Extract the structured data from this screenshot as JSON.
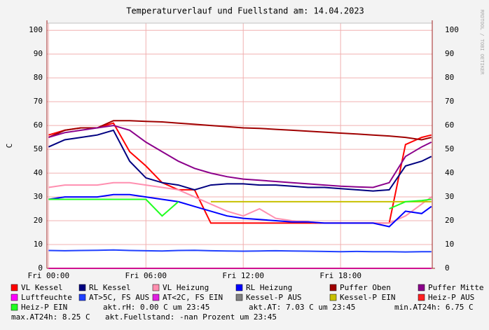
{
  "chart_data": {
    "type": "line",
    "title": "Temperaturverlauf und Fuellstand am: 14.04.2023",
    "y_label": "C",
    "side_label": "RRDTOOL / TOBI OETIKER",
    "x": [
      0,
      1,
      2,
      3,
      4,
      5,
      6,
      7,
      8,
      9,
      10,
      11,
      12,
      13,
      14,
      15,
      16,
      17,
      18,
      19,
      20,
      21,
      22,
      23,
      23.6
    ],
    "xlim": [
      -0.1,
      23.65
    ],
    "xticks": [
      {
        "value": 0,
        "label": "Fri 00:00"
      },
      {
        "value": 6,
        "label": "Fri 06:00"
      },
      {
        "value": 12,
        "label": "Fri 12:00"
      },
      {
        "value": 18,
        "label": "Fri 18:00"
      }
    ],
    "ylim": [
      0,
      103
    ],
    "yticks": [
      0,
      10,
      20,
      30,
      40,
      50,
      60,
      70,
      80,
      90,
      100
    ],
    "grid": true,
    "series": [
      {
        "name": "VL Kessel",
        "color": "#ff0000",
        "values": [
          56,
          58,
          59,
          59,
          61,
          49,
          43,
          36,
          33,
          33,
          19,
          19,
          19,
          19,
          19,
          19,
          19,
          19,
          19,
          19,
          19,
          19,
          52,
          55,
          56
        ]
      },
      {
        "name": "RL Kessel",
        "color": "#000080",
        "values": [
          51,
          54,
          55,
          56,
          58,
          45,
          38,
          36,
          35,
          33,
          35,
          35.5,
          35.5,
          35,
          35,
          34.5,
          34,
          34,
          33.5,
          33,
          32.5,
          33,
          43,
          45,
          47
        ]
      },
      {
        "name": "VL Heizung",
        "color": "#ff8fb0",
        "values": [
          34,
          35,
          35,
          35,
          36,
          36,
          35,
          34,
          33,
          30,
          27,
          24,
          22,
          25,
          21,
          20,
          19.5,
          19,
          19,
          19,
          19,
          19,
          22,
          27,
          30
        ]
      },
      {
        "name": "RL Heizung",
        "color": "#0000ff",
        "values": [
          29,
          30,
          30,
          30,
          31,
          31,
          30,
          29,
          28,
          26,
          24,
          22,
          21,
          20.5,
          20,
          19.5,
          19.5,
          19,
          19,
          19,
          19,
          17.5,
          24,
          23,
          26
        ]
      },
      {
        "name": "Puffer Oben",
        "color": "#a00000",
        "values": [
          55,
          58,
          59,
          59,
          62,
          62,
          61.7,
          61.5,
          61,
          60.5,
          60,
          59.5,
          59,
          58.8,
          58.4,
          58,
          57.6,
          57.2,
          56.8,
          56.4,
          56,
          55.6,
          55,
          54,
          55
        ]
      },
      {
        "name": "Puffer Mitte",
        "color": "#8b008b",
        "values": [
          55,
          57,
          58,
          59,
          60,
          58,
          53,
          49,
          45,
          42,
          40,
          38.5,
          37.5,
          37,
          36.5,
          36,
          35.5,
          35,
          34.5,
          34.2,
          34,
          36,
          47,
          51,
          53
        ]
      },
      {
        "name": "Luftfeuchte",
        "color": "#ff00ff",
        "values": [
          0,
          0,
          0,
          0,
          0,
          0,
          0,
          0,
          0,
          0,
          0,
          0,
          0,
          0,
          0,
          0,
          0,
          0,
          0,
          0,
          0,
          0,
          0,
          0,
          0
        ]
      },
      {
        "name": "AT>5C, FS AUS",
        "color": "#2040ff",
        "values": [
          7.5,
          7.4,
          7.5,
          7.6,
          7.7,
          7.5,
          7.4,
          7.3,
          7.5,
          7.6,
          7.4,
          7.3,
          7.2,
          7.3,
          7.4,
          7.3,
          7.2,
          7.1,
          7.0,
          7.1,
          7.0,
          7.0,
          6.9,
          7.0,
          7.0
        ]
      },
      {
        "name": "AT<2C, FS EIN",
        "color": "#e020e0",
        "values": [
          null,
          null,
          null,
          null,
          null,
          null,
          null,
          null,
          null,
          null,
          null,
          null,
          null,
          null,
          null,
          null,
          null,
          null,
          null,
          null,
          null,
          null,
          null,
          null,
          null
        ]
      },
      {
        "name": "Kessel-P AUS",
        "color": "#808080",
        "values": [
          null,
          null,
          null,
          null,
          null,
          null,
          null,
          null,
          null,
          null,
          null,
          null,
          null,
          null,
          null,
          null,
          null,
          null,
          null,
          null,
          null,
          null,
          null,
          null,
          null
        ]
      },
      {
        "name": "Kessel-P EIN",
        "color": "#c8c000",
        "values": [
          null,
          null,
          null,
          null,
          null,
          null,
          null,
          null,
          null,
          null,
          28,
          28,
          28,
          28,
          28,
          28,
          28,
          28,
          28,
          28,
          28,
          28,
          28,
          28,
          28
        ]
      },
      {
        "name": "Heiz-P AUS",
        "color": "#ff2020",
        "values": [
          null,
          null,
          null,
          null,
          null,
          null,
          null,
          null,
          null,
          null,
          null,
          null,
          null,
          null,
          null,
          null,
          null,
          null,
          null,
          null,
          null,
          null,
          null,
          null,
          null
        ]
      },
      {
        "name": "Heiz-P EIN",
        "color": "#20ff20",
        "values": [
          29,
          29,
          29,
          29,
          29,
          29,
          29,
          22,
          28,
          null,
          null,
          null,
          null,
          null,
          null,
          null,
          null,
          null,
          null,
          null,
          null,
          25,
          28,
          28.5,
          29
        ]
      }
    ],
    "notes": [
      "akt.rH: 0.00 C um 23:45",
      "akt.AT: 7.03 C um 23:45",
      "min.AT24h: 6.75 C",
      "max.AT24h: 8.25 C",
      "akt.Fuellstand: -nan Prozent um 23:45"
    ]
  }
}
